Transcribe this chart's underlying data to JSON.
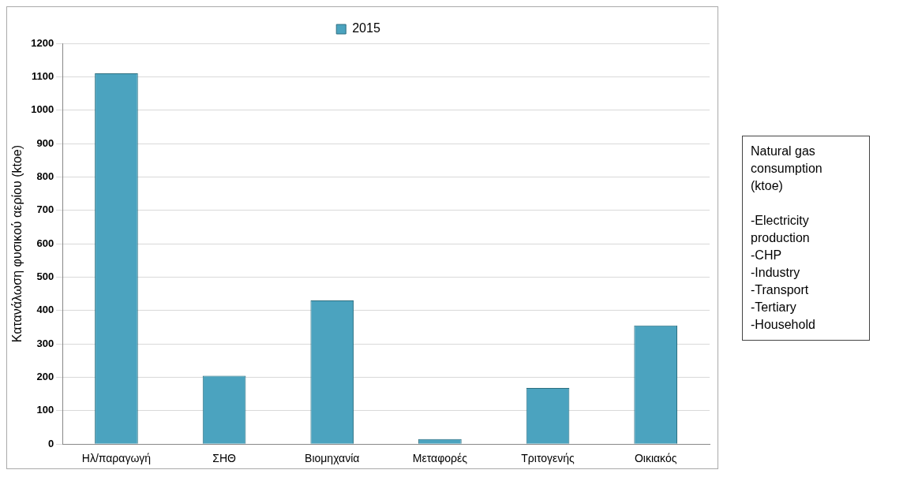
{
  "chart_data": {
    "type": "bar",
    "ylabel": "Κατανάλωση φυσικού αερίου (ktoe)",
    "categories": [
      "Ηλ/παραγωγή",
      "ΣΗΘ",
      "Βιομηχανία",
      "Μεταφορές",
      "Τριτογενής",
      "Οικιακός"
    ],
    "series": [
      {
        "name": "2015",
        "color": "#4ba3bf",
        "values": [
          1110,
          205,
          430,
          15,
          168,
          355
        ]
      }
    ],
    "ylim": [
      0,
      1200
    ],
    "yticks": [
      0,
      100,
      200,
      300,
      400,
      500,
      600,
      700,
      800,
      900,
      1000,
      1100,
      1200
    ],
    "grid": "y",
    "legend": "top",
    "annotations": [
      "Natural gas\nconsumption\n(ktoe)\n\n-Electricity\nproduction\n-CHP\n-Industry\n-Transport\n-Tertiary\n-Household"
    ]
  }
}
